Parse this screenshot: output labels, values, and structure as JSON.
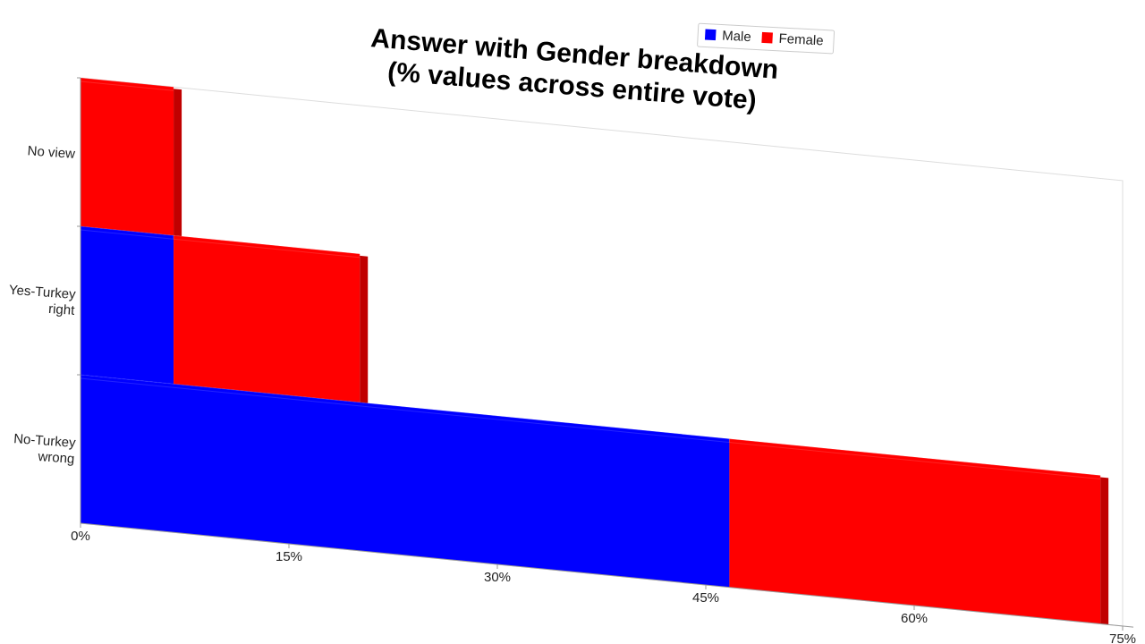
{
  "chart_data": {
    "type": "bar",
    "title": [
      "Answer with Gender breakdown",
      "(% values across entire vote)"
    ],
    "categories": [
      "No view",
      "Yes-Turkey right",
      "No-Turkey wrong"
    ],
    "series": [
      {
        "name": "Male",
        "color": "#0000ff",
        "values": [
          0,
          6.7,
          46.7
        ]
      },
      {
        "name": "Female",
        "color": "#ff0000",
        "values": [
          6.7,
          13.4,
          26.7
        ]
      }
    ],
    "xlim": [
      0,
      75
    ],
    "xticks": [
      {
        "value": 0,
        "label": "0%"
      },
      {
        "value": 15,
        "label": "15%"
      },
      {
        "value": 30,
        "label": "30%"
      },
      {
        "value": 45,
        "label": "45%"
      },
      {
        "value": 60,
        "label": "60%"
      },
      {
        "value": 75,
        "label": "75%"
      }
    ],
    "stacked": true
  }
}
